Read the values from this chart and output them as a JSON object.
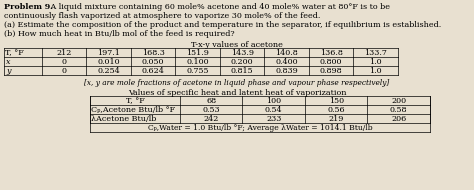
{
  "title_bold": "Problem 9.",
  "title_rest": " A liquid mixture containing 60 mole% acetone and 40 mole% water at 80°F is to be",
  "line2": "continuously flash vaporized at atmosphere to vaporize 30 mole% of the feed.",
  "line3": "(a) Estimate the composition of the product and temperature in the separator, if equilibrium is established.",
  "line4": "(b) How much heat in Btu/lb mol of the feed is required?",
  "table1_title": "T-x-y values of acetone",
  "table1_col0": "T, °F",
  "table1_headers": [
    "212",
    "197.1",
    "168.3",
    "151.9",
    "143.9",
    "140.8",
    "136.8",
    "133.7"
  ],
  "table1_row1_label": "x",
  "table1_row1": [
    "0",
    "0.010",
    "0.050",
    "0.100",
    "0.200",
    "0.400",
    "0.800",
    "1.0"
  ],
  "table1_row2_label": "y",
  "table1_row2": [
    "0",
    "0.254",
    "0.624",
    "0.755",
    "0.815",
    "0.839",
    "0.898",
    "1.0"
  ],
  "table1_note": "[x, y are mole fractions of acetone in liquid phase and vapour phase respectively]",
  "table2_title": "Values of specific heat and latent heat of vaporization",
  "table2_col0": "T, °F",
  "table2_headers": [
    "68",
    "100",
    "150",
    "200"
  ],
  "table2_row1_label": "Cₚ,Acetone Btu/lb °F",
  "table2_row1": [
    "0.53",
    "0.54",
    "0.56",
    "0.58"
  ],
  "table2_row2_label": "λAcetone Btu/lb",
  "table2_row2": [
    "242",
    "233",
    "219",
    "206"
  ],
  "table2_footer": "Cₚ,Water = 1.0 Btu/lb °F; Average λWater = 1014.1 Btu/lb",
  "bg_color": "#e8e0d0",
  "text_color": "#000000",
  "font_size": 5.8,
  "fig_width": 4.74,
  "fig_height": 1.9,
  "dpi": 100
}
